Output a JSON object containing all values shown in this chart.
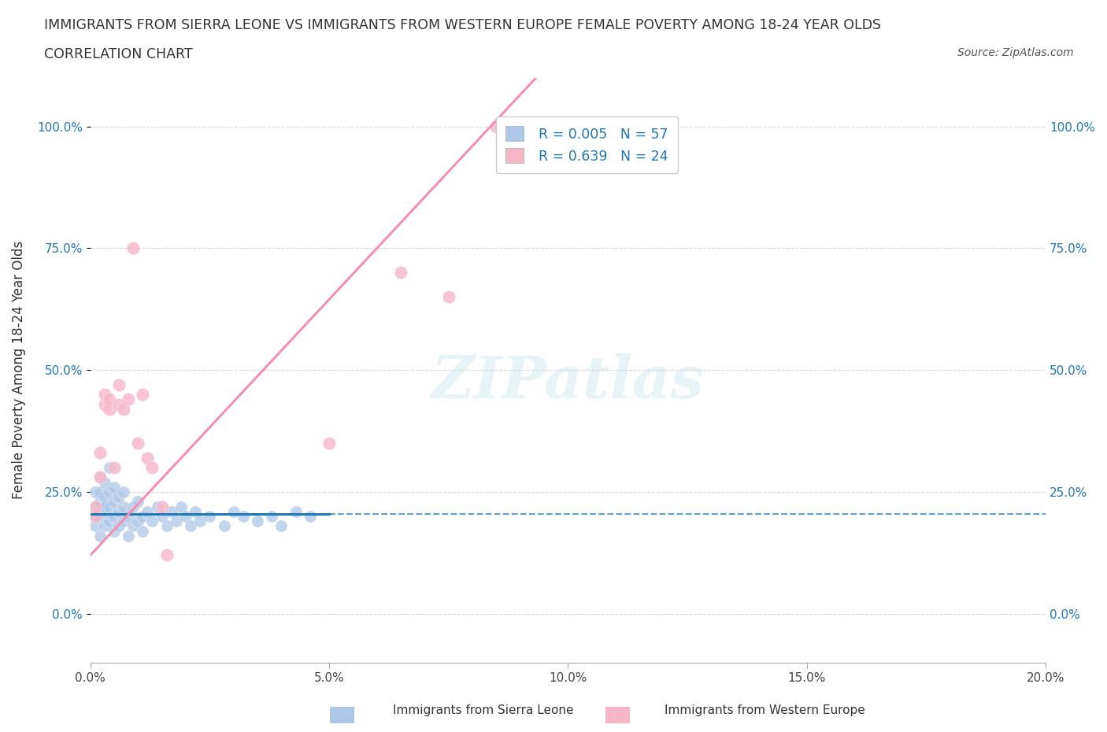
{
  "title_line1": "IMMIGRANTS FROM SIERRA LEONE VS IMMIGRANTS FROM WESTERN EUROPE FEMALE POVERTY AMONG 18-24 YEAR OLDS",
  "title_line2": "CORRELATION CHART",
  "source_text": "Source: ZipAtlas.com",
  "ylabel": "Female Poverty Among 18-24 Year Olds",
  "xlim": [
    0.0,
    0.2
  ],
  "ylim": [
    -0.1,
    1.1
  ],
  "yticks": [
    0.0,
    0.25,
    0.5,
    0.75,
    1.0
  ],
  "ytick_labels": [
    "0.0%",
    "25.0%",
    "50.0%",
    "75.0%",
    "100.0%"
  ],
  "xticks": [
    0.0,
    0.05,
    0.1,
    0.15,
    0.2
  ],
  "xtick_labels": [
    "0.0%",
    "5.0%",
    "10.0%",
    "15.0%",
    "20.0%"
  ],
  "background_color": "#ffffff",
  "grid_color": "#d8d8d8",
  "watermark_text": "ZIPatlas",
  "legend_R1": "R = 0.005",
  "legend_N1": "N = 57",
  "legend_R2": "R = 0.639",
  "legend_N2": "N = 24",
  "color_blue": "#aec7e8",
  "color_pink": "#f7b6c8",
  "color_blue_text": "#1f77b4",
  "trendline_blue_color": "#1f77b4",
  "trendline_pink_color": "#f48fb1",
  "blue_scatter_x": [
    0.001,
    0.001,
    0.001,
    0.001,
    0.002,
    0.002,
    0.002,
    0.002,
    0.002,
    0.003,
    0.003,
    0.003,
    0.003,
    0.003,
    0.004,
    0.004,
    0.004,
    0.004,
    0.005,
    0.005,
    0.005,
    0.005,
    0.006,
    0.006,
    0.006,
    0.007,
    0.007,
    0.007,
    0.008,
    0.008,
    0.009,
    0.009,
    0.01,
    0.01,
    0.011,
    0.011,
    0.012,
    0.013,
    0.014,
    0.015,
    0.016,
    0.017,
    0.018,
    0.019,
    0.02,
    0.021,
    0.022,
    0.023,
    0.025,
    0.028,
    0.03,
    0.032,
    0.035,
    0.038,
    0.04,
    0.043,
    0.046
  ],
  "blue_scatter_y": [
    0.22,
    0.18,
    0.25,
    0.2,
    0.16,
    0.23,
    0.28,
    0.2,
    0.25,
    0.18,
    0.24,
    0.21,
    0.27,
    0.22,
    0.19,
    0.25,
    0.3,
    0.22,
    0.17,
    0.23,
    0.2,
    0.26,
    0.18,
    0.24,
    0.21,
    0.19,
    0.25,
    0.22,
    0.2,
    0.16,
    0.22,
    0.18,
    0.19,
    0.23,
    0.2,
    0.17,
    0.21,
    0.19,
    0.22,
    0.2,
    0.18,
    0.21,
    0.19,
    0.22,
    0.2,
    0.18,
    0.21,
    0.19,
    0.2,
    0.18,
    0.21,
    0.2,
    0.19,
    0.2,
    0.18,
    0.21,
    0.2
  ],
  "pink_scatter_x": [
    0.001,
    0.001,
    0.002,
    0.002,
    0.003,
    0.003,
    0.004,
    0.004,
    0.005,
    0.006,
    0.006,
    0.007,
    0.008,
    0.009,
    0.01,
    0.011,
    0.012,
    0.013,
    0.015,
    0.016,
    0.05,
    0.065,
    0.075,
    0.085
  ],
  "pink_scatter_y": [
    0.2,
    0.22,
    0.28,
    0.33,
    0.43,
    0.45,
    0.42,
    0.44,
    0.3,
    0.43,
    0.47,
    0.42,
    0.44,
    0.75,
    0.35,
    0.45,
    0.32,
    0.3,
    0.22,
    0.12,
    0.35,
    0.7,
    0.65,
    1.0
  ],
  "blue_trendline_y_intercept": 0.205,
  "blue_trendline_slope": 0.0,
  "pink_trendline_y_intercept": 0.12,
  "pink_trendline_slope": 10.5
}
